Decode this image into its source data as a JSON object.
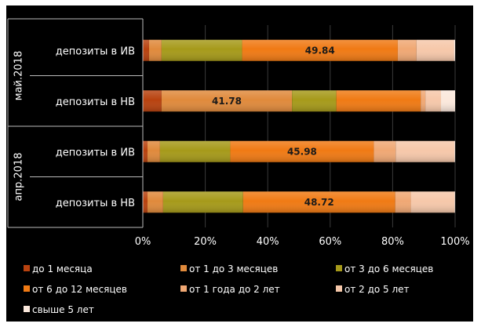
{
  "chart_data": {
    "type": "bar",
    "stacked": "percent",
    "orientation": "horizontal",
    "groups": [
      "май.2018",
      "апр.2018"
    ],
    "rows": [
      {
        "group": "май.2018",
        "label": "депозиты в ИВ"
      },
      {
        "group": "май.2018",
        "label": "депозиты в НВ"
      },
      {
        "group": "апр.2018",
        "label": "депозиты в ИВ"
      },
      {
        "group": "апр.2018",
        "label": "депозиты в НВ"
      }
    ],
    "series": [
      {
        "name": "до 1 месяца",
        "color": "#b8420f",
        "values": [
          2.0,
          6.0,
          1.5,
          1.5
        ]
      },
      {
        "name": "от 1 до 3 месяцев",
        "color": "#e08a3c",
        "values": [
          4.0,
          41.78,
          4.0,
          5.0
        ]
      },
      {
        "name": "от 3 до 6 месяцев",
        "color": "#a69a1a",
        "values": [
          25.8,
          14.2,
          22.5,
          25.6
        ]
      },
      {
        "name": "от 6 до 12 месяцев",
        "color": "#f07a14",
        "values": [
          49.84,
          27.0,
          45.98,
          48.72
        ]
      },
      {
        "name": "от 1 года до 2 лет",
        "color": "#f0a874",
        "values": [
          6.0,
          1.5,
          7.0,
          5.0
        ]
      },
      {
        "name": "от 2 до 5 лет",
        "color": "#f6c8aa",
        "values": [
          12.0,
          5.0,
          18.8,
          14.0
        ]
      },
      {
        "name": "свыше 5 лет",
        "color": "#fbe8dc",
        "values": [
          0.36,
          4.52,
          0.22,
          0.18
        ]
      }
    ],
    "data_labels": [
      {
        "row": 0,
        "series": 3,
        "text": "49.84"
      },
      {
        "row": 1,
        "series": 1,
        "text": "41.78"
      },
      {
        "row": 2,
        "series": 3,
        "text": "45.98"
      },
      {
        "row": 3,
        "series": 3,
        "text": "48.72"
      }
    ],
    "x_ticks": [
      "0%",
      "20%",
      "40%",
      "60%",
      "80%",
      "100%"
    ],
    "xlim": [
      0,
      100
    ],
    "legend_position": "bottom",
    "grid": true,
    "background": "#000000",
    "text_color": "#ffffff"
  }
}
